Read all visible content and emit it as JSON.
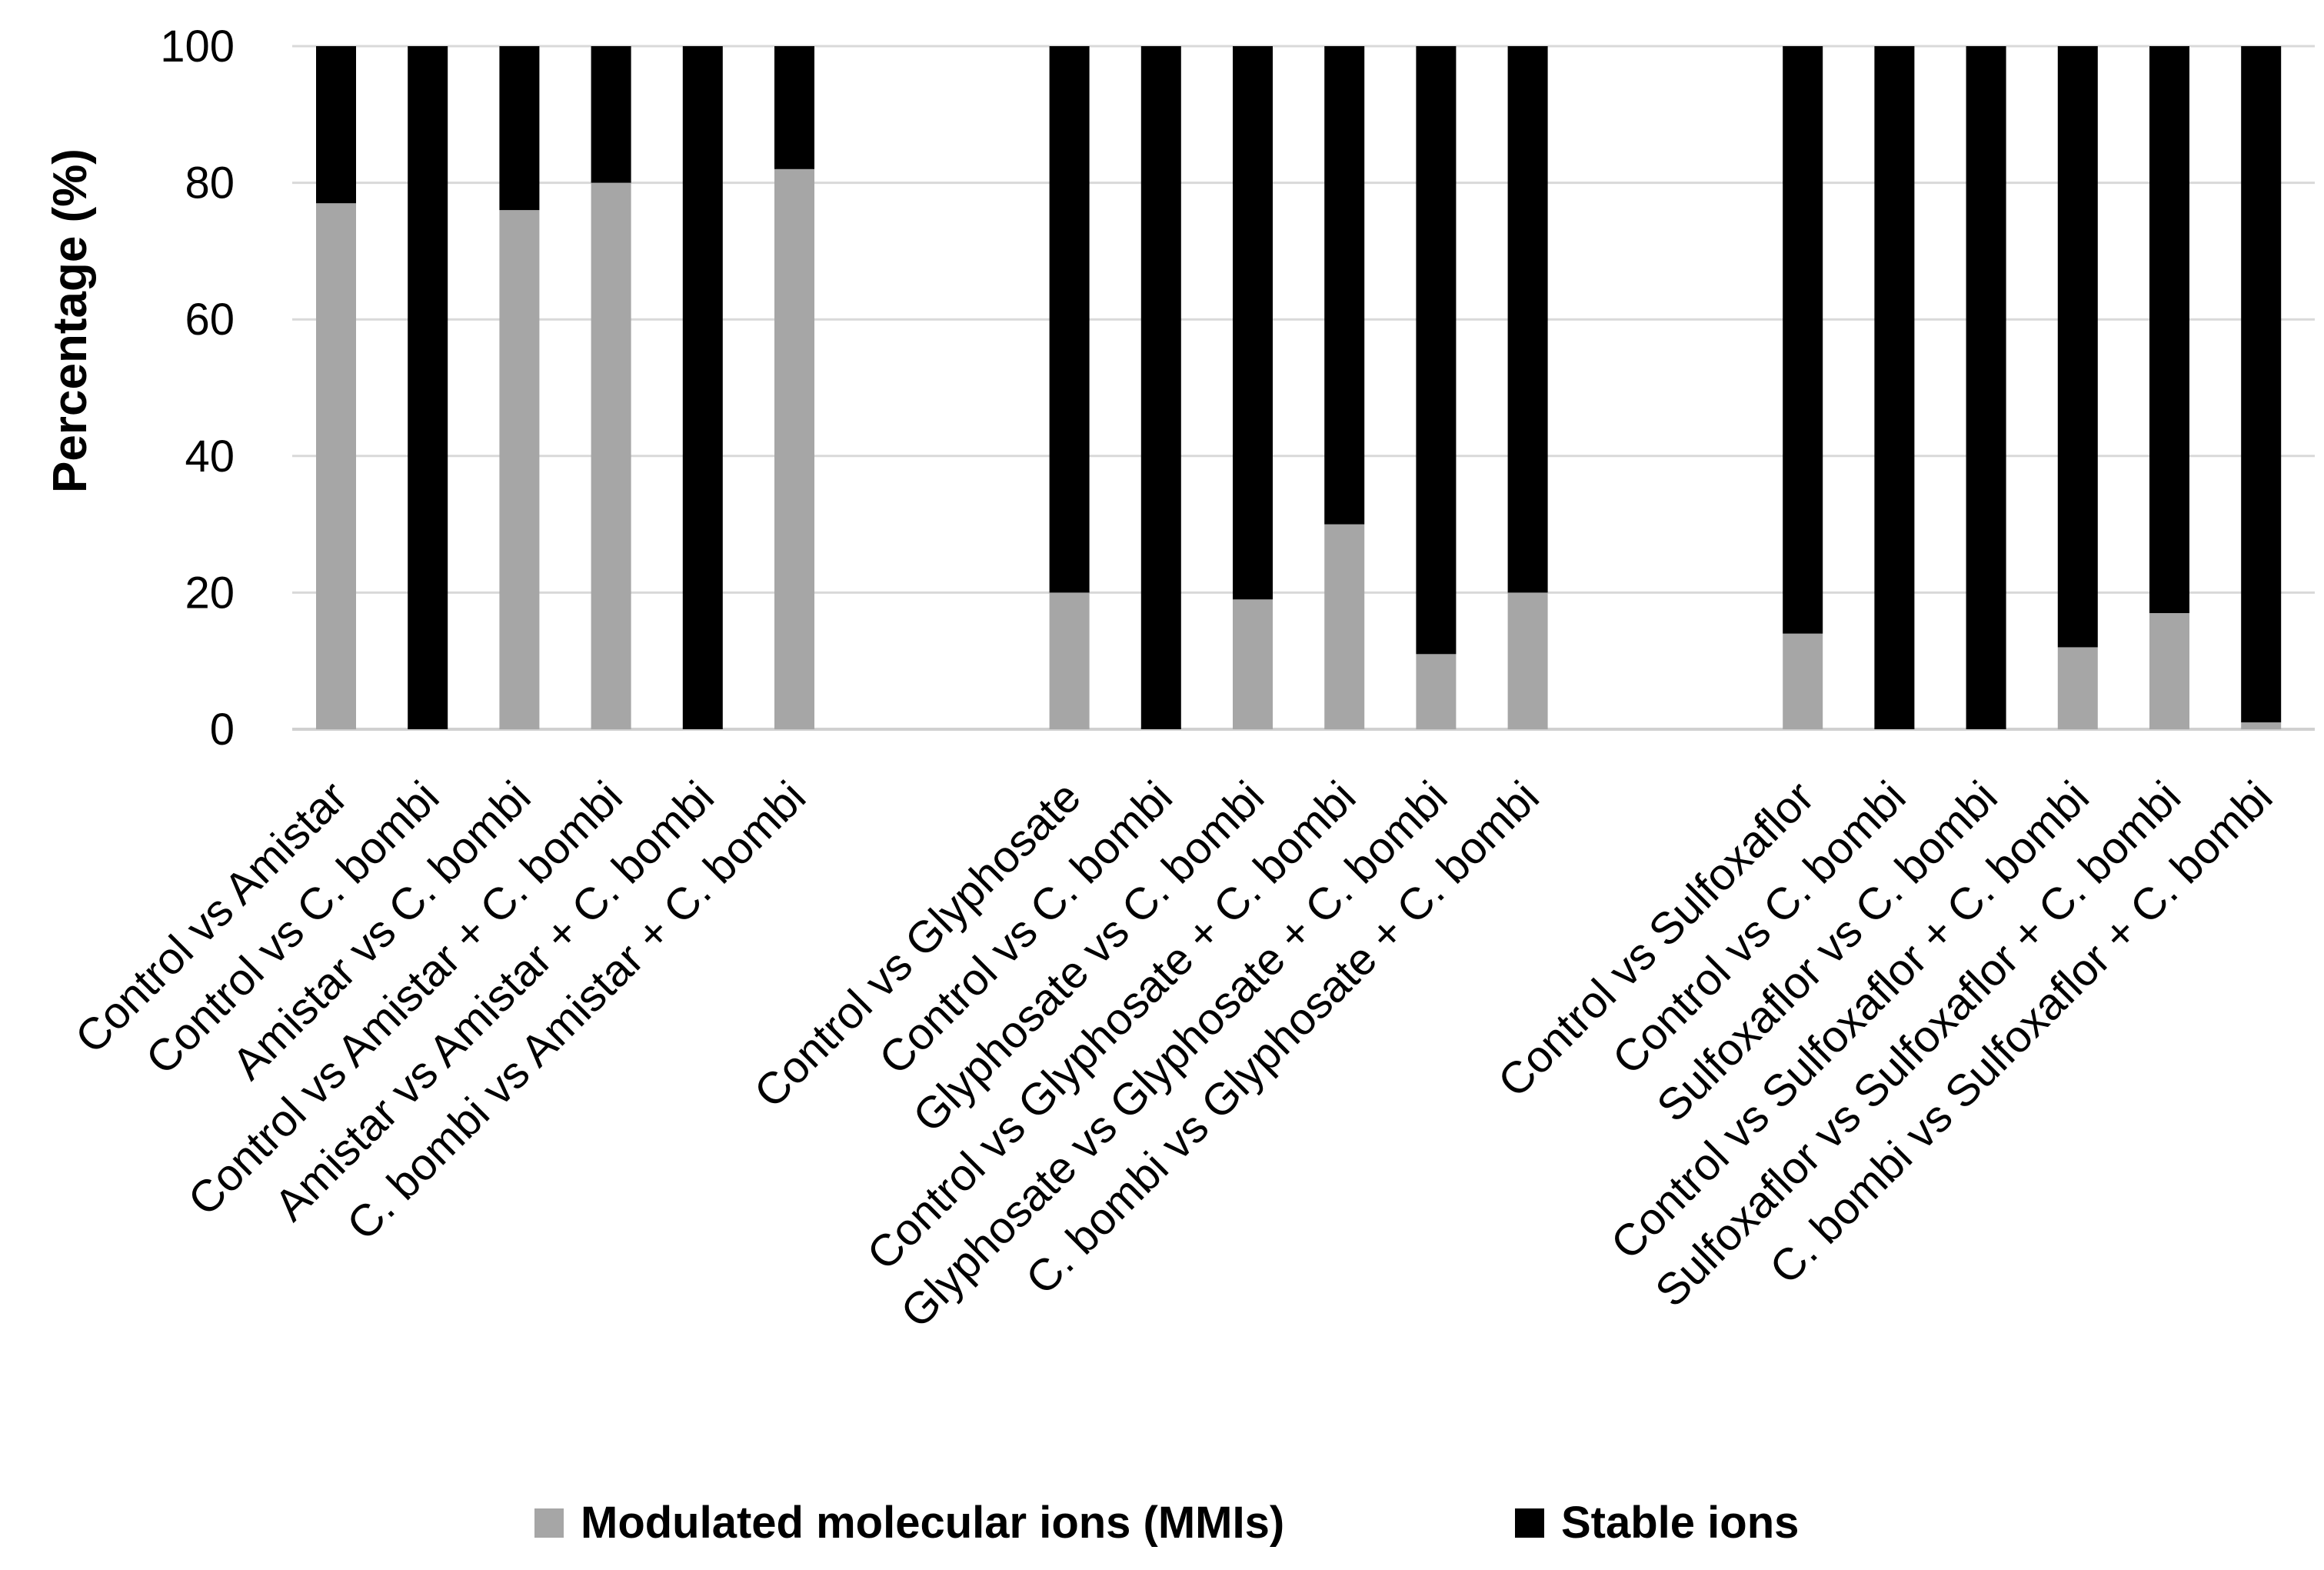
{
  "chart_data": {
    "type": "bar",
    "stacked": true,
    "title": "",
    "xlabel": "",
    "ylabel": "Percentage (%)",
    "ylim": [
      0,
      100
    ],
    "yticks": [
      0,
      20,
      40,
      60,
      80,
      100
    ],
    "grid": true,
    "legend_position": "bottom",
    "categories": [
      "Control vs Amistar",
      "Control vs C. bombi",
      "Amistar vs C. bombi",
      "Control vs Amistar + C. bombi",
      "Amistar vs Amistar + C. bombi",
      "C. bombi vs Amistar + C. bombi",
      "Control vs Glyphosate",
      "Control vs C. bombi",
      "Glyphosate vs C. bombi",
      "Control vs Glyphosate + C. bombi",
      "Glyphosate vs Glyphosate + C. bombi",
      "C. bombi vs Glyphosate + C. bombi",
      "Control vs Sulfoxaflor",
      "Control vs C. bombi",
      "Sulfoxaflor vs C. bombi",
      "Control vs Sulfoxaflor + C. bombi",
      "Sulfoxaflor vs Sulfoxaflor + C. bombi",
      "C. bombi vs Sulfoxaflor + C. bombi"
    ],
    "groups": [
      {
        "start": 0,
        "count": 6
      },
      {
        "start": 6,
        "count": 6
      },
      {
        "start": 12,
        "count": 6
      }
    ],
    "series": [
      {
        "name": "Modulated molecular ions (MMIs)",
        "color": "#a6a6a6",
        "values": [
          77,
          0,
          76,
          80,
          0,
          82,
          20,
          0,
          19,
          30,
          11,
          20,
          14,
          0,
          0,
          12,
          17,
          1
        ]
      },
      {
        "name": "Stable ions",
        "color": "#000000",
        "values": [
          23,
          100,
          24,
          20,
          100,
          18,
          80,
          100,
          81,
          70,
          89,
          80,
          86,
          100,
          100,
          88,
          83,
          99
        ]
      }
    ]
  }
}
